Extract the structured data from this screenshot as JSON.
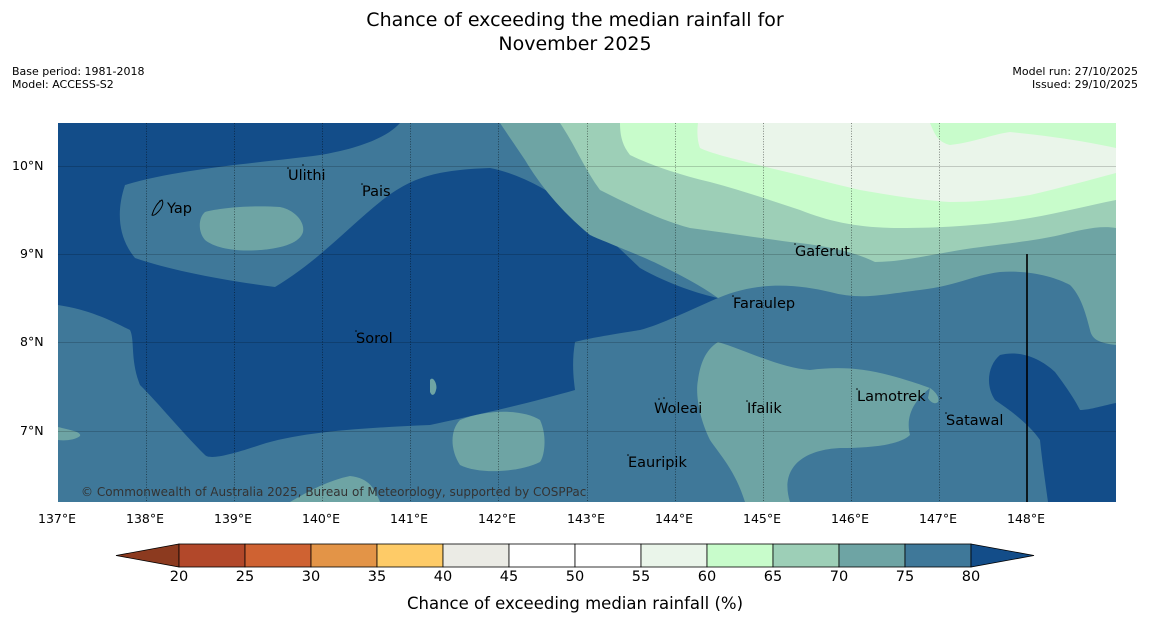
{
  "header": {
    "title_line1": "Chance of exceeding the median rainfall for",
    "title_line2": "November 2025",
    "base_period": "Base period: 1981-2018",
    "model": "Model: ACCESS-S2",
    "model_run": "Model run: 27/10/2025",
    "issued": "Issued: 29/10/2025"
  },
  "map": {
    "copyright": "© Commonwealth of Australia 2025, Bureau of Meteorology, supported by COSPPac",
    "lon_labels": [
      "137°E",
      "138°E",
      "139°E",
      "140°E",
      "141°E",
      "142°E",
      "143°E",
      "144°E",
      "145°E",
      "146°E",
      "147°E",
      "148°E"
    ],
    "lat_labels": [
      "10°N",
      "9°N",
      "8°N",
      "7°N"
    ],
    "places": [
      {
        "name": "Yap"
      },
      {
        "name": "Ulithi"
      },
      {
        "name": "Pais"
      },
      {
        "name": "Gaferut"
      },
      {
        "name": "Faraulep"
      },
      {
        "name": "Sorol"
      },
      {
        "name": "Lamotrek"
      },
      {
        "name": "Woleai"
      },
      {
        "name": "Ifalik"
      },
      {
        "name": "Satawal"
      },
      {
        "name": "Eauripik"
      }
    ]
  },
  "colorbar": {
    "title": "Chance of exceeding median rainfall (%)",
    "ticks": [
      "20",
      "25",
      "30",
      "35",
      "40",
      "45",
      "50",
      "55",
      "60",
      "65",
      "70",
      "75",
      "80"
    ],
    "colors": [
      "#8c3a1f",
      "#b2482a",
      "#cf6232",
      "#e39447",
      "#fecb67",
      "#ebebe5",
      "#ffffff",
      "#ffffff",
      "#eaf5ea",
      "#c8fccb",
      "#9dcfb7",
      "#6ea4a4",
      "#3f7899",
      "#134d89"
    ]
  }
}
